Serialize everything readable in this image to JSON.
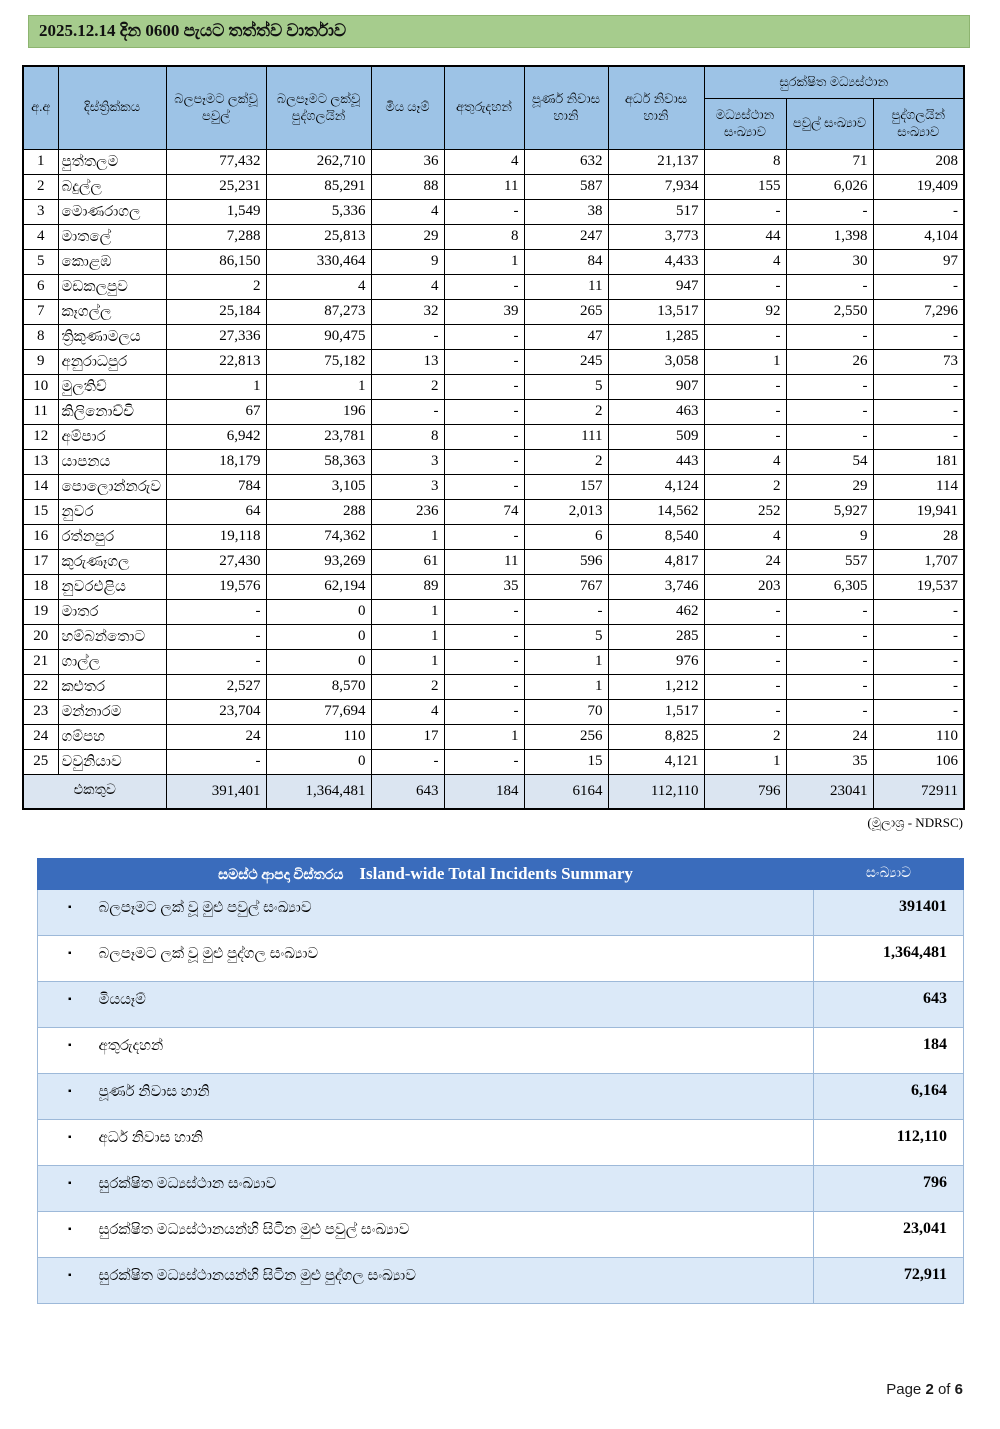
{
  "page": {
    "title": "2025.12.14 දින 0600 පැයට තත්ත්ව වාර්තාව",
    "source_note": "(මූලාශ්‍ර - NDRSC)",
    "footer": {
      "page_word": "Page",
      "page_number": "2",
      "of_word": "of",
      "total_pages": "6"
    }
  },
  "colors": {
    "title_bar_green": "#a6cc8d",
    "table_header_blue": "#9dc3e6",
    "total_row_blue": "#dbe5f1",
    "summary_header_blue": "#3a6cbc",
    "summary_alt_row_blue": "#dbe9f8",
    "border_black": "#000000",
    "summary_border_blue": "#9db9d9"
  },
  "main_table": {
    "headers": {
      "serial": "අ.අ",
      "district": "දිස්ත්‍රික්කය",
      "affected_families": "බලපෑමට ලක්වූ පවුල්",
      "affected_persons": "බලපෑමට ලක්වූ පුද්ගලයින්",
      "deaths": "මිය යෑම්",
      "missing": "අතුරුදහන්",
      "full_house_damage": "පූර්ණ නිවාස හානි",
      "half_house_damage": "අර්ධ නිවාස හානි",
      "safe_centers_group": "සුරක්ෂිත මධ්‍යස්ථාන",
      "centers_count": "මධ්‍යස්ථාන සංඛ්‍යාව",
      "center_families": "පවුල් සංඛ්‍යාව",
      "center_persons": "පුද්ගලයින් සංඛ්‍යාව"
    },
    "rows": [
      [
        "1",
        "පුත්තලම",
        "77,432",
        "262,710",
        "36",
        "4",
        "632",
        "21,137",
        "8",
        "71",
        "208"
      ],
      [
        "2",
        "බදුල්ල",
        "25,231",
        "85,291",
        "88",
        "11",
        "587",
        "7,934",
        "155",
        "6,026",
        "19,409"
      ],
      [
        "3",
        "මොණරාගල",
        "1,549",
        "5,336",
        "4",
        "-",
        "38",
        "517",
        "-",
        "-",
        "-"
      ],
      [
        "4",
        "මාතලේ",
        "7,288",
        "25,813",
        "29",
        "8",
        "247",
        "3,773",
        "44",
        "1,398",
        "4,104"
      ],
      [
        "5",
        "කොළඹ",
        "86,150",
        "330,464",
        "9",
        "1",
        "84",
        "4,433",
        "4",
        "30",
        "97"
      ],
      [
        "6",
        "මඩකලපුව",
        "2",
        "4",
        "4",
        "-",
        "11",
        "947",
        "-",
        "-",
        "-"
      ],
      [
        "7",
        "කෑගල්ල",
        "25,184",
        "87,273",
        "32",
        "39",
        "265",
        "13,517",
        "92",
        "2,550",
        "7,296"
      ],
      [
        "8",
        "ත්‍රිකුණාමලය",
        "27,336",
        "90,475",
        "-",
        "-",
        "47",
        "1,285",
        "-",
        "-",
        "-"
      ],
      [
        "9",
        "අනුරාධපුර",
        "22,813",
        "75,182",
        "13",
        "-",
        "245",
        "3,058",
        "1",
        "26",
        "73"
      ],
      [
        "10",
        "මුලතිව්",
        "1",
        "1",
        "2",
        "-",
        "5",
        "907",
        "-",
        "-",
        "-"
      ],
      [
        "11",
        "කිලිනොච්චි",
        "67",
        "196",
        "-",
        "-",
        "2",
        "463",
        "-",
        "-",
        "-"
      ],
      [
        "12",
        "අම්පාර",
        "6,942",
        "23,781",
        "8",
        "-",
        "111",
        "509",
        "-",
        "-",
        "-"
      ],
      [
        "13",
        "යාපනය",
        "18,179",
        "58,363",
        "3",
        "-",
        "2",
        "443",
        "4",
        "54",
        "181"
      ],
      [
        "14",
        "පොලොන්නරුව",
        "784",
        "3,105",
        "3",
        "-",
        "157",
        "4,124",
        "2",
        "29",
        "114"
      ],
      [
        "15",
        "නුවර",
        "64",
        "288",
        "236",
        "74",
        "2,013",
        "14,562",
        "252",
        "5,927",
        "19,941"
      ],
      [
        "16",
        "රත්නපුර",
        "19,118",
        "74,362",
        "1",
        "-",
        "6",
        "8,540",
        "4",
        "9",
        "28"
      ],
      [
        "17",
        "කුරුණෑගල",
        "27,430",
        "93,269",
        "61",
        "11",
        "596",
        "4,817",
        "24",
        "557",
        "1,707"
      ],
      [
        "18",
        "නුවරඑළිය",
        "19,576",
        "62,194",
        "89",
        "35",
        "767",
        "3,746",
        "203",
        "6,305",
        "19,537"
      ],
      [
        "19",
        "මාතර",
        "-",
        "0",
        "1",
        "-",
        "-",
        "462",
        "-",
        "-",
        "-"
      ],
      [
        "20",
        "හම්බන්තොට",
        "-",
        "0",
        "1",
        "-",
        "5",
        "285",
        "-",
        "-",
        "-"
      ],
      [
        "21",
        "ගාල්ල",
        "-",
        "0",
        "1",
        "-",
        "1",
        "976",
        "-",
        "-",
        "-"
      ],
      [
        "22",
        "කළුතර",
        "2,527",
        "8,570",
        "2",
        "-",
        "1",
        "1,212",
        "-",
        "-",
        "-"
      ],
      [
        "23",
        "මන්නාරම",
        "23,704",
        "77,694",
        "4",
        "-",
        "70",
        "1,517",
        "-",
        "-",
        "-"
      ],
      [
        "24",
        "ගම්පහ",
        "24",
        "110",
        "17",
        "1",
        "256",
        "8,825",
        "2",
        "24",
        "110"
      ],
      [
        "25",
        "වවුනියාව",
        "-",
        "0",
        "-",
        "-",
        "15",
        "4,121",
        "1",
        "35",
        "106"
      ]
    ],
    "total_label": "එකතුව",
    "totals": [
      "391,401",
      "1,364,481",
      "643",
      "184",
      "6164",
      "112,110",
      "796",
      "23041",
      "72911"
    ]
  },
  "summary_table": {
    "title_si": "සමස්ථ ආපදා විස්තරය",
    "title_en": "Island-wide Total Incidents Summary",
    "value_header": "සංඛ්‍යාව",
    "bullet": "▪",
    "rows": [
      {
        "label": "බලපෑමට ලක් වූ මුළු  පවුල් සංඛ්‍යාව",
        "value": "391401"
      },
      {
        "label": "බලපෑමට ලක් වූ මුළු  පුද්ගල සංඛ්‍යාව",
        "value": "1,364,481"
      },
      {
        "label": "මියයෑම්",
        "value": "643"
      },
      {
        "label": "අතුරුදහන්",
        "value": "184"
      },
      {
        "label": "පූර්ණ නිවාස හානි",
        "value": "6,164"
      },
      {
        "label": "අර්ධ නිවාස හානි",
        "value": "112,110"
      },
      {
        "label": "සුරක්ෂිත මධ්‍යස්ථාන සංඛ්‍යාව",
        "value": "796"
      },
      {
        "label": "සුරක්ෂිත මධ්‍යස්ථානයන්හි සිටින මුළු පවුල් සංඛ්‍යාව",
        "value": "23,041"
      },
      {
        "label": "සුරක්ෂිත මධ්‍යස්ථානයන්හි සිටින මුළු පුද්ගල සංඛ්‍යාව",
        "value": "72,911"
      }
    ]
  }
}
